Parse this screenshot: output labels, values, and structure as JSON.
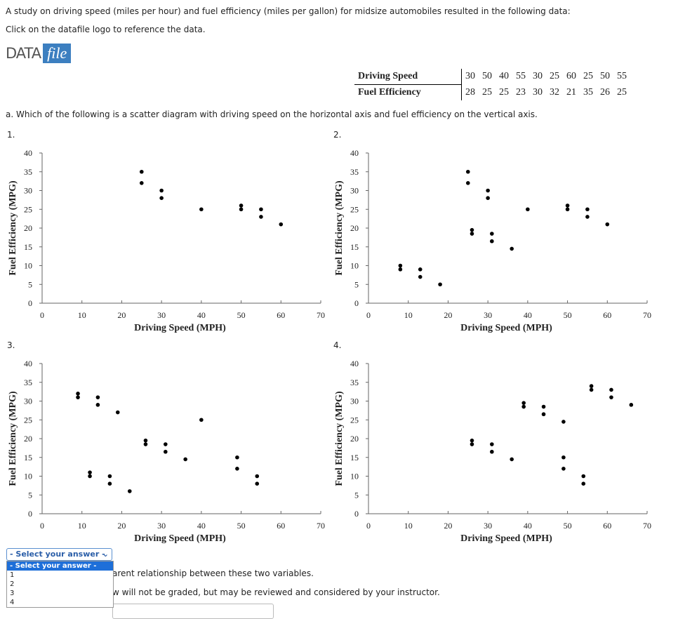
{
  "intro": "A study on driving speed (miles per hour) and fuel efficiency (miles per gallon) for midsize automobiles resulted in the following data:",
  "instruction": "Click on the datafile logo to reference the data.",
  "logo": {
    "left": "DATA",
    "right": "file"
  },
  "table": {
    "rows": [
      [
        "Driving Speed",
        30,
        50,
        40,
        55,
        30,
        25,
        60,
        25,
        50,
        55
      ],
      [
        "Fuel Efficiency",
        28,
        25,
        25,
        23,
        30,
        32,
        21,
        35,
        26,
        25
      ]
    ]
  },
  "question": "a. Which of the following is a scatter diagram with driving speed on the horizontal axis and fuel efficiency on the vertical axis.",
  "chart_data": [
    {
      "type": "scatter",
      "panel_label": "1.",
      "x_label": "Driving Speed (MPH)",
      "y_label": "Fuel Efficiency (MPG)",
      "color": "#000000",
      "xlim": [
        0,
        70
      ],
      "xticks": [
        0,
        10,
        20,
        30,
        40,
        50,
        60,
        70
      ],
      "ylim": [
        0,
        40
      ],
      "yticks": [
        0,
        5,
        10,
        15,
        20,
        25,
        30,
        35,
        40
      ],
      "series": [
        {
          "x": [
            25,
            25,
            30,
            30,
            40,
            50,
            50,
            55,
            55,
            60
          ],
          "values": [
            35,
            32,
            30,
            28,
            25,
            26,
            25,
            25,
            23,
            21
          ]
        }
      ]
    },
    {
      "type": "scatter",
      "panel_label": "2.",
      "x_label": "Driving Speed (MPH)",
      "y_label": "Fuel Efficiency (MPG)",
      "color": "#000000",
      "xlim": [
        0,
        70
      ],
      "xticks": [
        0,
        10,
        20,
        30,
        40,
        50,
        60,
        70
      ],
      "ylim": [
        0,
        40
      ],
      "yticks": [
        0,
        5,
        10,
        15,
        20,
        25,
        30,
        35,
        40
      ],
      "series": [
        {
          "x": [
            25,
            25,
            30,
            30,
            26,
            26,
            31,
            31,
            36,
            40,
            50,
            50,
            55,
            55,
            60,
            8,
            8,
            13,
            13,
            18
          ],
          "values": [
            35,
            32,
            30,
            28,
            19.5,
            18.5,
            18.5,
            16.5,
            14.5,
            25,
            26,
            25,
            25,
            23,
            21,
            10,
            9,
            9,
            7,
            5
          ]
        }
      ]
    },
    {
      "type": "scatter",
      "panel_label": "3.",
      "x_label": "Driving Speed (MPH)",
      "y_label": "Fuel Efficiency (MPG)",
      "color": "#000000",
      "xlim": [
        0,
        70
      ],
      "xticks": [
        0,
        10,
        20,
        30,
        40,
        50,
        60,
        70
      ],
      "ylim": [
        0,
        40
      ],
      "yticks": [
        0,
        5,
        10,
        15,
        20,
        25,
        30,
        35,
        40
      ],
      "series": [
        {
          "x": [
            9,
            9,
            14,
            14,
            19,
            26,
            26,
            31,
            31,
            36,
            40,
            49,
            49,
            54,
            54,
            17,
            17,
            12,
            12,
            22
          ],
          "values": [
            32,
            31,
            31,
            29,
            27,
            19.5,
            18.5,
            18.5,
            16.5,
            14.5,
            25,
            15,
            12,
            10,
            8,
            10,
            8,
            11,
            10,
            6
          ]
        }
      ]
    },
    {
      "type": "scatter",
      "panel_label": "4.",
      "x_label": "Driving Speed (MPH)",
      "y_label": "Fuel Efficiency (MPG)",
      "color": "#000000",
      "xlim": [
        0,
        70
      ],
      "xticks": [
        0,
        10,
        20,
        30,
        40,
        50,
        60,
        70
      ],
      "ylim": [
        0,
        40
      ],
      "yticks": [
        0,
        5,
        10,
        15,
        20,
        25,
        30,
        35,
        40
      ],
      "series": [
        {
          "x": [
            26,
            26,
            31,
            31,
            36,
            39,
            39,
            44,
            44,
            49,
            49,
            49,
            54,
            54,
            56,
            56,
            61,
            61,
            66
          ],
          "values": [
            19.5,
            18.5,
            18.5,
            16.5,
            14.5,
            29.5,
            28.5,
            28.5,
            26.5,
            24.5,
            15,
            12,
            10,
            8,
            34,
            33,
            33,
            31,
            29
          ]
        }
      ]
    }
  ],
  "select": {
    "current": "- Select your answer -",
    "options": [
      "- Select your answer -",
      "1",
      "2",
      "3",
      "4"
    ]
  },
  "text_after_select": "arent relationship between these two variables.",
  "note": "w will not be graded, but may be reviewed and considered by your instructor."
}
